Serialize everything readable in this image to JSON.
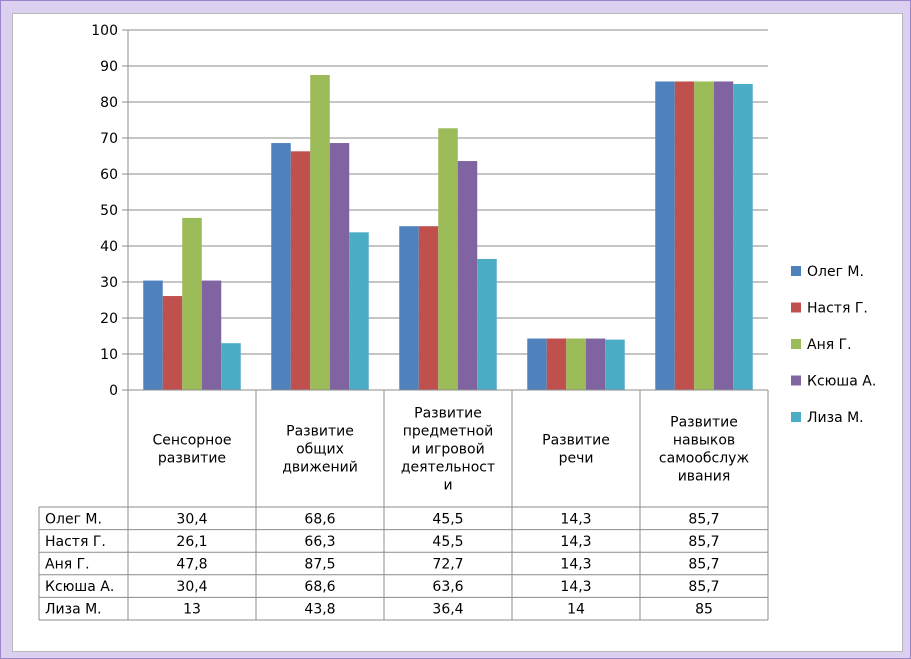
{
  "colors": {
    "background": "#dcd0f0",
    "panel": "#ffffff",
    "gridline": "#8c8c8c"
  },
  "chart_data": {
    "type": "bar",
    "ylim": [
      0,
      100
    ],
    "yticks": [
      0,
      10,
      20,
      30,
      40,
      50,
      60,
      70,
      80,
      90,
      100
    ],
    "grid": true,
    "legend_position": "right",
    "categories": [
      [
        "Сенсорное",
        "развитие"
      ],
      [
        "Развитие",
        "общих",
        "движений"
      ],
      [
        "Развитие",
        "предметной",
        "и игровой",
        "деятельност",
        "и"
      ],
      [
        "Развитие",
        "речи"
      ],
      [
        "Развитие",
        "навыков",
        "самообслуж",
        "ивания"
      ]
    ],
    "series": [
      {
        "name": "Олег М.",
        "color": "#4f81bd",
        "values": [
          30.4,
          68.6,
          45.5,
          14.3,
          85.7
        ],
        "labels": [
          "30,4",
          "68,6",
          "45,5",
          "14,3",
          "85,7"
        ]
      },
      {
        "name": "Настя Г.",
        "color": "#c0504d",
        "values": [
          26.1,
          66.3,
          45.5,
          14.3,
          85.7
        ],
        "labels": [
          "26,1",
          "66,3",
          "45,5",
          "14,3",
          "85,7"
        ]
      },
      {
        "name": "Аня Г.",
        "color": "#9bbb59",
        "values": [
          47.8,
          87.5,
          72.7,
          14.3,
          85.7
        ],
        "labels": [
          "47,8",
          "87,5",
          "72,7",
          "14,3",
          "85,7"
        ]
      },
      {
        "name": "Ксюша А.",
        "color": "#8064a2",
        "values": [
          30.4,
          68.6,
          63.6,
          14.3,
          85.7
        ],
        "labels": [
          "30,4",
          "68,6",
          "63,6",
          "14,3",
          "85,7"
        ]
      },
      {
        "name": "Лиза М.",
        "color": "#4bacc6",
        "values": [
          13,
          43.8,
          36.4,
          14,
          85
        ],
        "labels": [
          "13",
          "43,8",
          "36,4",
          "14",
          "85"
        ]
      }
    ]
  }
}
